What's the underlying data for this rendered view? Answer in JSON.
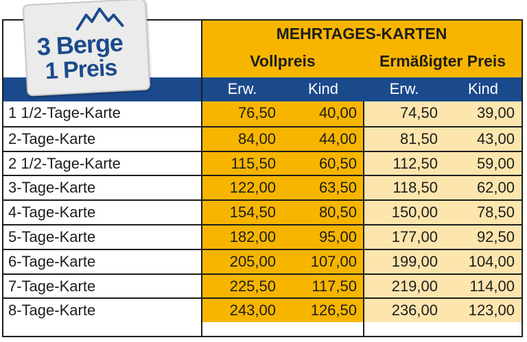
{
  "logo": {
    "line1": "3 Berge",
    "line2": "1 Preis"
  },
  "header": {
    "title": "MEHRTAGES-KARTEN",
    "vollpreis": "Vollpreis",
    "ermaessigt": "Ermäßigter Preis",
    "col_erw_1": "Erw.",
    "col_kind_1": "Kind",
    "col_erw_2": "Erw.",
    "col_kind_2": "Kind"
  },
  "rows": [
    {
      "label": "1 1/2-Tage-Karte",
      "v1": "76,50",
      "v2": "40,00",
      "v3": "74,50",
      "v4": "39,00"
    },
    {
      "label": "2-Tage-Karte",
      "v1": "84,00",
      "v2": "44,00",
      "v3": "81,50",
      "v4": "43,00"
    },
    {
      "label": "2 1/2-Tage-Karte",
      "v1": "115,50",
      "v2": "60,50",
      "v3": "112,50",
      "v4": "59,00"
    },
    {
      "label": "3-Tage-Karte",
      "v1": "122,00",
      "v2": "63,50",
      "v3": "118,50",
      "v4": "62,00"
    },
    {
      "label": "4-Tage-Karte",
      "v1": "154,50",
      "v2": "80,50",
      "v3": "150,00",
      "v4": "78,50"
    },
    {
      "label": "5-Tage-Karte",
      "v1": "182,00",
      "v2": "95,00",
      "v3": "177,00",
      "v4": "92,50"
    },
    {
      "label": "6-Tage-Karte",
      "v1": "205,00",
      "v2": "107,00",
      "v3": "199,00",
      "v4": "104,00"
    },
    {
      "label": "7-Tage-Karte",
      "v1": "225,50",
      "v2": "117,50",
      "v3": "219,00",
      "v4": "114,00"
    },
    {
      "label": "8-Tage-Karte",
      "v1": "243,00",
      "v2": "126,50",
      "v3": "236,00",
      "v4": "123,00"
    }
  ],
  "colors": {
    "orange": "#f7b500",
    "light_orange": "#fde5ae",
    "blue": "#1b4a8c"
  }
}
